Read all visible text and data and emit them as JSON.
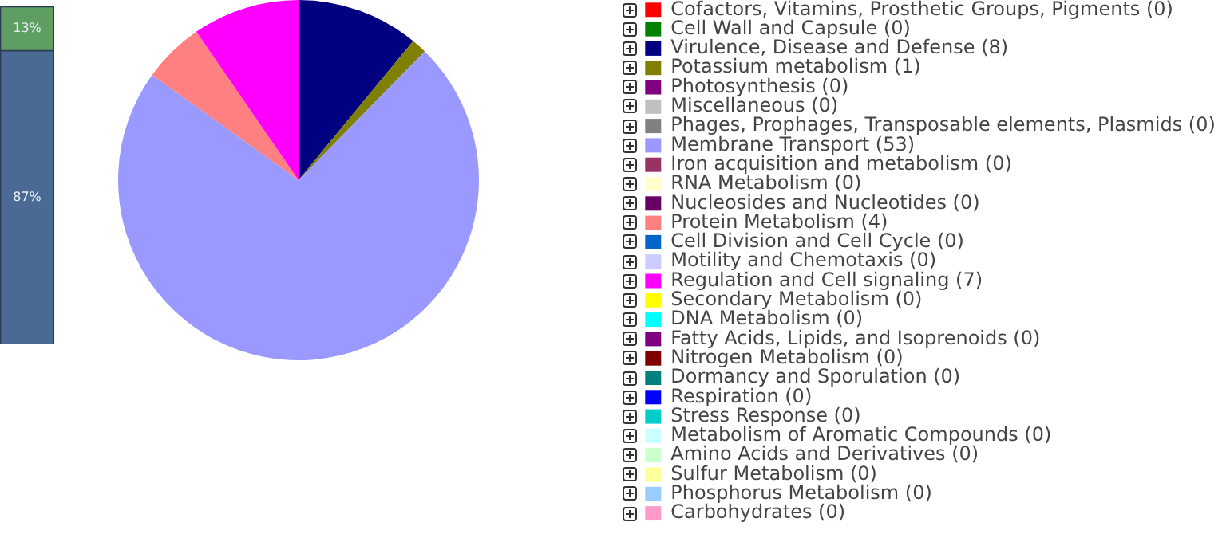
{
  "chart_data": [
    {
      "type": "bar",
      "stacked": true,
      "categories": [
        null
      ],
      "ylim": [
        0,
        100
      ],
      "tick_labels": false,
      "series": [
        {
          "color": "#4a6a94",
          "values": [
            87
          ],
          "value_labels": [
            "87%"
          ]
        },
        {
          "color": "#5e9e62",
          "values": [
            13
          ],
          "value_labels": [
            "13%"
          ]
        }
      ]
    },
    {
      "type": "pie",
      "legend": "right",
      "categories": [
        "Cofactors, Vitamins, Prosthetic Groups, Pigments (0)",
        "Cell Wall and Capsule (0)",
        "Virulence, Disease and Defense (8)",
        "Potassium metabolism (1)",
        "Photosynthesis (0)",
        "Miscellaneous (0)",
        "Phages, Prophages, Transposable elements, Plasmids (0)",
        "Membrane Transport (53)",
        "Iron acquisition and metabolism (0)",
        "RNA Metabolism (0)",
        "Nucleosides and Nucleotides (0)",
        "Protein Metabolism (4)",
        "Cell Division and Cell Cycle (0)",
        "Motility and Chemotaxis (0)",
        "Regulation and Cell signaling (7)",
        "Secondary Metabolism (0)",
        "DNA Metabolism (0)",
        "Fatty Acids, Lipids, and Isoprenoids (0)",
        "Nitrogen Metabolism (0)",
        "Dormancy and Sporulation (0)",
        "Respiration (0)",
        "Stress Response (0)",
        "Metabolism of Aromatic Compounds (0)",
        "Amino Acids and Derivatives (0)",
        "Sulfur Metabolism (0)",
        "Phosphorus Metabolism (0)",
        "Carbohydrates (0)"
      ],
      "values": [
        0,
        0,
        8,
        1,
        0,
        0,
        0,
        53,
        0,
        0,
        0,
        4,
        0,
        0,
        7,
        0,
        0,
        0,
        0,
        0,
        0,
        0,
        0,
        0,
        0,
        0,
        0
      ],
      "colors": [
        "#ff0000",
        "#008000",
        "#000080",
        "#808000",
        "#800080",
        "#c0c0c0",
        "#808080",
        "#9999ff",
        "#993366",
        "#ffffcc",
        "#660066",
        "#ff8080",
        "#0066cc",
        "#ccccff",
        "#ff00ff",
        "#ffff00",
        "#00ffff",
        "#800080",
        "#800000",
        "#008080",
        "#0000ff",
        "#00cccc",
        "#ccffff",
        "#ccffcc",
        "#ffff99",
        "#99ccff",
        "#ff99cc"
      ]
    }
  ]
}
